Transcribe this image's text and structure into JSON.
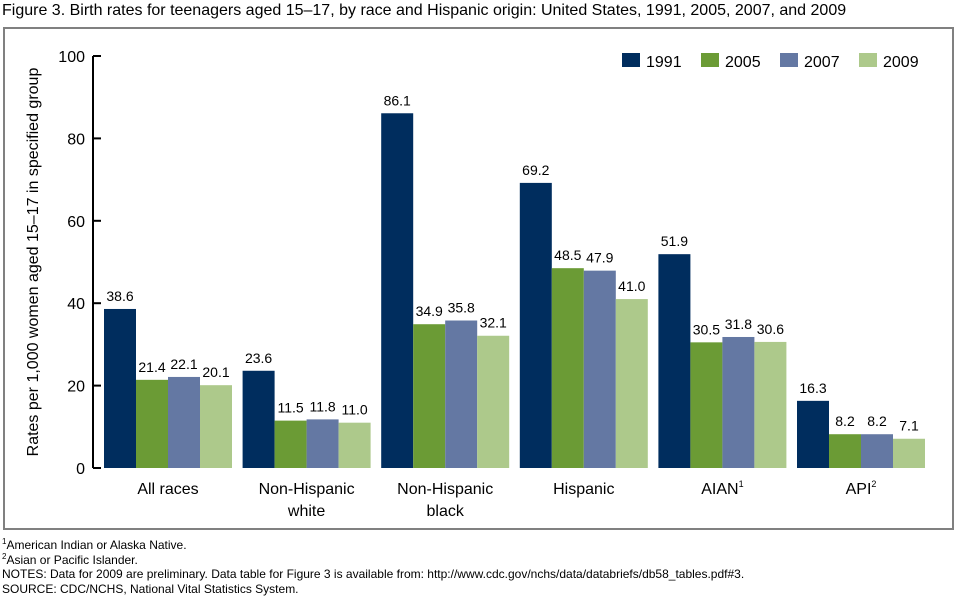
{
  "chart_data": {
    "type": "bar",
    "title": "Figure 3. Birth rates for teenagers aged 15–17, by race and Hispanic origin: United States, 1991, 2005, 2007, and 2009",
    "ylabel": "Rates per 1,000 women aged 15–17 in specified group",
    "xlabel": "",
    "ylim": [
      0,
      100
    ],
    "yticks": [
      0,
      20,
      40,
      60,
      80,
      100
    ],
    "grid": false,
    "legend": "top-right",
    "categories": [
      {
        "lines": [
          "All races"
        ],
        "sup": ""
      },
      {
        "lines": [
          "Non-Hispanic",
          "white"
        ],
        "sup": ""
      },
      {
        "lines": [
          "Non-Hispanic",
          "black"
        ],
        "sup": ""
      },
      {
        "lines": [
          "Hispanic"
        ],
        "sup": ""
      },
      {
        "lines": [
          "AIAN"
        ],
        "sup": "1"
      },
      {
        "lines": [
          "API"
        ],
        "sup": "2"
      }
    ],
    "series": [
      {
        "name": "1991",
        "color": "#002d5e",
        "values": [
          38.6,
          23.6,
          86.1,
          69.2,
          51.9,
          16.3
        ]
      },
      {
        "name": "2005",
        "color": "#6b9b35",
        "values": [
          21.4,
          11.5,
          34.9,
          48.5,
          30.5,
          8.2
        ]
      },
      {
        "name": "2007",
        "color": "#6478a3",
        "values": [
          22.1,
          11.8,
          35.8,
          47.9,
          31.8,
          8.2
        ]
      },
      {
        "name": "2009",
        "color": "#adc98b",
        "values": [
          20.1,
          11.0,
          32.1,
          41.0,
          30.6,
          7.1
        ]
      }
    ]
  },
  "footnotes": {
    "note1_sup": "1",
    "note1": "American Indian or Alaska Native.",
    "note2_sup": "2",
    "note2": "Asian or Pacific Islander.",
    "notes": "NOTES: Data for 2009 are preliminary. Data table for Figure 3 is available from: http://www.cdc.gov/nchs/data/databriefs/db58_tables.pdf#3.",
    "source": "SOURCE: CDC/NCHS, National Vital Statistics System."
  }
}
